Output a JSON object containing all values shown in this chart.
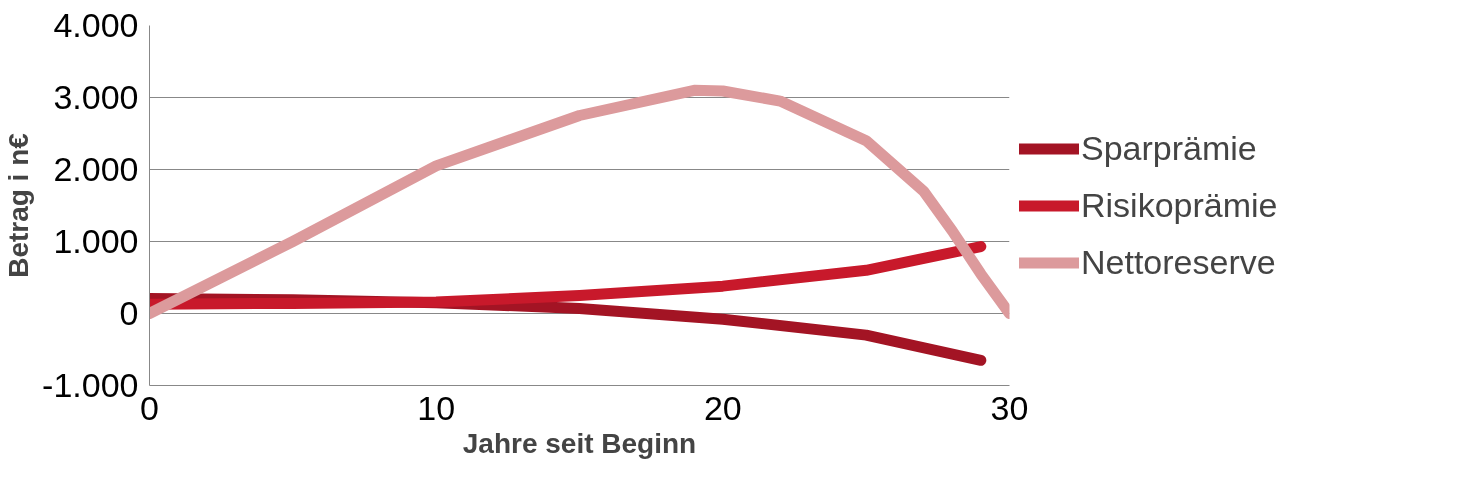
{
  "chart_data": {
    "type": "line",
    "xlabel": "Jahre seit Beginn",
    "ylabel": "Betrag i n€",
    "xlim": [
      0,
      30
    ],
    "xticks": [
      0,
      10,
      20,
      30
    ],
    "ylim": [
      -1000,
      4000
    ],
    "yticks": [
      {
        "value": -1000,
        "label": "-1.000"
      },
      0,
      {
        "value": 1000,
        "label": "1.000"
      },
      {
        "value": 2000,
        "label": "2.000"
      },
      {
        "value": 3000,
        "label": "3.000"
      },
      {
        "value": 4000,
        "label": "4.000"
      }
    ],
    "grid": "y",
    "legend": "right",
    "line_style": "solid",
    "marker": "none",
    "series": [
      {
        "name": "Sparprämie",
        "color": "#a31424",
        "x": [
          0,
          5,
          10,
          15,
          20,
          25,
          29
        ],
        "values": [
          210,
          190,
          150,
          70,
          -80,
          -300,
          -650
        ]
      },
      {
        "name": "Risikoprämie",
        "color": "#c8192b",
        "x": [
          0,
          5,
          10,
          15,
          20,
          25,
          29
        ],
        "values": [
          130,
          140,
          160,
          250,
          380,
          600,
          930
        ]
      },
      {
        "name": "Nettoreserve",
        "color": "#dc9a9c",
        "x": [
          0,
          5,
          10,
          15,
          19,
          20,
          22,
          25,
          27,
          28,
          29,
          30
        ],
        "values": [
          0,
          1000,
          2050,
          2750,
          3100,
          3090,
          2950,
          2400,
          1700,
          1150,
          550,
          0
        ]
      }
    ]
  }
}
